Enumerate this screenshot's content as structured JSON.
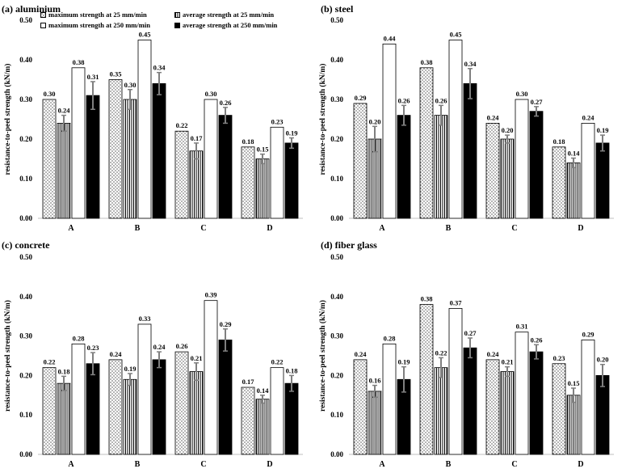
{
  "legend": {
    "s25max": "maximum strength at 25 mm/min",
    "s25avg": "average strength at 25 mm/min",
    "s250max": "maximum strength at 250 mm/min",
    "s250avg": "average strength at 250 mm/min"
  },
  "chart_data": [
    {
      "type": "bar",
      "title": "(a) aluminium",
      "ylabel": "resistance-to-peel strength (kN/m)",
      "ylim": [
        0,
        0.5
      ],
      "yticks": [
        "0.00",
        "0.10",
        "0.20",
        "0.30",
        "0.40",
        "0.50"
      ],
      "categories": [
        "A",
        "B",
        "C",
        "D"
      ],
      "series": [
        {
          "name": "maximum strength at 25 mm/min",
          "values": [
            0.3,
            0.35,
            0.22,
            0.18
          ],
          "labels": [
            "0.30",
            "0.35",
            "0.22",
            "0.18"
          ]
        },
        {
          "name": "average strength at 25 mm/min",
          "values": [
            0.24,
            0.3,
            0.17,
            0.15
          ],
          "labels": [
            "0.24",
            "0.30",
            "0.17",
            "0.15"
          ],
          "errors": [
            0.02,
            0.025,
            0.02,
            0.012
          ]
        },
        {
          "name": "maximum strength at 250 mm/min",
          "values": [
            0.38,
            0.45,
            0.3,
            0.23
          ],
          "labels": [
            "0.38",
            "0.45",
            "0.30",
            "0.23"
          ]
        },
        {
          "name": "average strength at 250 mm/min",
          "values": [
            0.31,
            0.34,
            0.26,
            0.19
          ],
          "labels": [
            "0.31",
            "0.34",
            "0.26",
            "0.19"
          ],
          "errors": [
            0.035,
            0.028,
            0.02,
            0.013
          ]
        }
      ]
    },
    {
      "type": "bar",
      "title": "(b) steel",
      "ylabel": "resistance-to-peel strength (kN/m)",
      "ylim": [
        0,
        0.5
      ],
      "yticks": [
        "0.00",
        "0.10",
        "0.20",
        "0.30",
        "0.40",
        "0.50"
      ],
      "categories": [
        "A",
        "B",
        "C",
        "D"
      ],
      "series": [
        {
          "name": "maximum strength at 25 mm/min",
          "values": [
            0.29,
            0.38,
            0.24,
            0.18
          ],
          "labels": [
            "0.29",
            "0.38",
            "0.24",
            "0.18"
          ]
        },
        {
          "name": "average strength at 25 mm/min",
          "values": [
            0.2,
            0.26,
            0.2,
            0.14
          ],
          "labels": [
            "0.20",
            "0.26",
            "0.20",
            "0.14"
          ],
          "errors": [
            0.032,
            0.025,
            0.01,
            0.012
          ]
        },
        {
          "name": "maximum strength at 250 mm/min",
          "values": [
            0.44,
            0.45,
            0.3,
            0.24
          ],
          "labels": [
            "0.44",
            "0.45",
            "0.30",
            "0.24"
          ]
        },
        {
          "name": "average strength at 250 mm/min",
          "values": [
            0.26,
            0.34,
            0.27,
            0.19
          ],
          "labels": [
            "0.26",
            "0.34",
            "0.27",
            "0.19"
          ],
          "errors": [
            0.025,
            0.038,
            0.012,
            0.02
          ]
        }
      ]
    },
    {
      "type": "bar",
      "title": "(c) concrete",
      "ylabel": "resistance-to-peel strength (kN/m)",
      "ylim": [
        0,
        0.5
      ],
      "yticks": [
        "0.00",
        "0.10",
        "0.20",
        "0.30",
        "0.40",
        "0.50"
      ],
      "categories": [
        "A",
        "B",
        "C",
        "D"
      ],
      "series": [
        {
          "name": "maximum strength at 25 mm/min",
          "values": [
            0.22,
            0.24,
            0.26,
            0.17
          ],
          "labels": [
            "0.22",
            "0.24",
            "0.26",
            "0.17"
          ]
        },
        {
          "name": "average strength at 25 mm/min",
          "values": [
            0.18,
            0.19,
            0.21,
            0.14
          ],
          "labels": [
            "0.18",
            "0.19",
            "0.21",
            "0.14"
          ],
          "errors": [
            0.018,
            0.015,
            0.022,
            0.01
          ]
        },
        {
          "name": "maximum strength at 250 mm/min",
          "values": [
            0.28,
            0.33,
            0.39,
            0.22
          ],
          "labels": [
            "0.28",
            "0.33",
            "0.39",
            "0.22"
          ]
        },
        {
          "name": "average strength at 250 mm/min",
          "values": [
            0.23,
            0.24,
            0.29,
            0.18
          ],
          "labels": [
            "0.23",
            "0.24",
            "0.29",
            "0.18"
          ],
          "errors": [
            0.028,
            0.02,
            0.028,
            0.02
          ]
        }
      ]
    },
    {
      "type": "bar",
      "title": "(d) fiber glass",
      "ylabel": "resistance-to-peel strength (kN/m)",
      "ylim": [
        0,
        0.5
      ],
      "yticks": [
        "0.00",
        "0.10",
        "0.20",
        "0.30",
        "0.40",
        "0.50"
      ],
      "categories": [
        "A",
        "B",
        "C",
        "D"
      ],
      "series": [
        {
          "name": "maximum strength at 25 mm/min",
          "values": [
            0.24,
            0.38,
            0.24,
            0.23
          ],
          "labels": [
            "0.24",
            "0.38",
            "0.24",
            "0.23"
          ]
        },
        {
          "name": "average strength at 25 mm/min",
          "values": [
            0.16,
            0.22,
            0.21,
            0.15
          ],
          "labels": [
            "0.16",
            "0.22",
            "0.21",
            "0.15"
          ],
          "errors": [
            0.015,
            0.025,
            0.012,
            0.018
          ]
        },
        {
          "name": "maximum strength at 250 mm/min",
          "values": [
            0.28,
            0.37,
            0.31,
            0.29
          ],
          "labels": [
            "0.28",
            "0.37",
            "0.31",
            "0.29"
          ]
        },
        {
          "name": "average strength at 250 mm/min",
          "values": [
            0.19,
            0.27,
            0.26,
            0.2
          ],
          "labels": [
            "0.19",
            "0.27",
            "0.26",
            "0.20"
          ],
          "errors": [
            0.032,
            0.025,
            0.018,
            0.028
          ]
        }
      ]
    }
  ]
}
